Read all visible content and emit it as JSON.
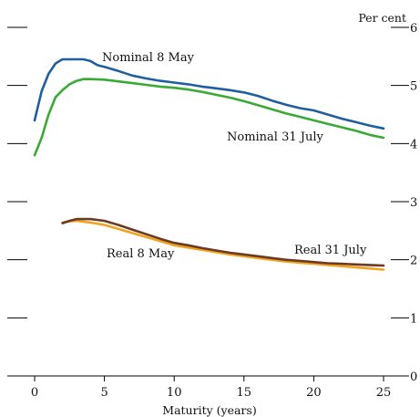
{
  "chart_data": {
    "type": "line",
    "ylabel": "Per cent",
    "xlabel": "Maturity (years)",
    "xlim": [
      0,
      25
    ],
    "ylim": [
      0,
      6
    ],
    "x_ticks": [
      0,
      5,
      10,
      15,
      20,
      25
    ],
    "y_ticks": [
      0,
      1,
      2,
      3,
      4,
      5,
      6
    ],
    "x_tick_labels": [
      "0",
      "5",
      "10",
      "15",
      "20",
      "25"
    ],
    "y_tick_labels": [
      "0",
      "1",
      "2",
      "3",
      "4",
      "5",
      "6"
    ],
    "grid": false,
    "series": [
      {
        "name": "Nominal 8 May",
        "color": "#1f5fa0",
        "points": [
          [
            0,
            4.4
          ],
          [
            0.5,
            4.9
          ],
          [
            1,
            5.2
          ],
          [
            1.5,
            5.38
          ],
          [
            2,
            5.45
          ],
          [
            3,
            5.45
          ],
          [
            3.5,
            5.45
          ],
          [
            4,
            5.42
          ],
          [
            4.5,
            5.35
          ],
          [
            5,
            5.32
          ],
          [
            6,
            5.25
          ],
          [
            7,
            5.17
          ],
          [
            8,
            5.12
          ],
          [
            9,
            5.08
          ],
          [
            10,
            5.05
          ],
          [
            11,
            5.02
          ],
          [
            12,
            4.98
          ],
          [
            13,
            4.95
          ],
          [
            14,
            4.92
          ],
          [
            15,
            4.88
          ],
          [
            16,
            4.82
          ],
          [
            17,
            4.74
          ],
          [
            18,
            4.67
          ],
          [
            19,
            4.61
          ],
          [
            20,
            4.57
          ],
          [
            21,
            4.5
          ],
          [
            22,
            4.43
          ],
          [
            23,
            4.37
          ],
          [
            24,
            4.31
          ],
          [
            25,
            4.26
          ]
        ]
      },
      {
        "name": "Nominal 31 July",
        "color": "#3aaa35",
        "points": [
          [
            0,
            3.8
          ],
          [
            0.5,
            4.1
          ],
          [
            1,
            4.5
          ],
          [
            1.5,
            4.8
          ],
          [
            2,
            4.92
          ],
          [
            2.5,
            5.02
          ],
          [
            3,
            5.08
          ],
          [
            3.5,
            5.11
          ],
          [
            4,
            5.11
          ],
          [
            5,
            5.1
          ],
          [
            6,
            5.07
          ],
          [
            7,
            5.04
          ],
          [
            8,
            5.01
          ],
          [
            9,
            4.98
          ],
          [
            10,
            4.96
          ],
          [
            11,
            4.93
          ],
          [
            12,
            4.89
          ],
          [
            13,
            4.84
          ],
          [
            14,
            4.79
          ],
          [
            15,
            4.73
          ],
          [
            16,
            4.66
          ],
          [
            17,
            4.59
          ],
          [
            18,
            4.52
          ],
          [
            19,
            4.46
          ],
          [
            20,
            4.4
          ],
          [
            21,
            4.34
          ],
          [
            22,
            4.28
          ],
          [
            23,
            4.22
          ],
          [
            24,
            4.15
          ],
          [
            25,
            4.1
          ]
        ]
      },
      {
        "name": "Real 8 May",
        "color": "#f2a21c",
        "points": [
          [
            2,
            2.64
          ],
          [
            2.5,
            2.66
          ],
          [
            3,
            2.67
          ],
          [
            4,
            2.64
          ],
          [
            5,
            2.6
          ],
          [
            6,
            2.53
          ],
          [
            7,
            2.46
          ],
          [
            8,
            2.39
          ],
          [
            9,
            2.32
          ],
          [
            10,
            2.25
          ],
          [
            11,
            2.21
          ],
          [
            12,
            2.17
          ],
          [
            13,
            2.13
          ],
          [
            14,
            2.09
          ],
          [
            15,
            2.06
          ],
          [
            16,
            2.03
          ],
          [
            17,
            2.0
          ],
          [
            18,
            1.97
          ],
          [
            19,
            1.95
          ],
          [
            20,
            1.93
          ],
          [
            21,
            1.91
          ],
          [
            22,
            1.89
          ],
          [
            23,
            1.87
          ],
          [
            24,
            1.85
          ],
          [
            25,
            1.83
          ]
        ]
      },
      {
        "name": "Real 31 July",
        "color": "#6b3a25",
        "points": [
          [
            2,
            2.63
          ],
          [
            2.5,
            2.67
          ],
          [
            3,
            2.7
          ],
          [
            4,
            2.7
          ],
          [
            5,
            2.67
          ],
          [
            6,
            2.6
          ],
          [
            7,
            2.52
          ],
          [
            8,
            2.44
          ],
          [
            9,
            2.36
          ],
          [
            10,
            2.29
          ],
          [
            11,
            2.25
          ],
          [
            12,
            2.2
          ],
          [
            13,
            2.16
          ],
          [
            14,
            2.12
          ],
          [
            15,
            2.09
          ],
          [
            16,
            2.06
          ],
          [
            17,
            2.03
          ],
          [
            18,
            2.0
          ],
          [
            19,
            1.98
          ],
          [
            20,
            1.96
          ],
          [
            21,
            1.94
          ],
          [
            22,
            1.93
          ],
          [
            23,
            1.92
          ],
          [
            24,
            1.91
          ],
          [
            25,
            1.9
          ]
        ]
      }
    ]
  }
}
